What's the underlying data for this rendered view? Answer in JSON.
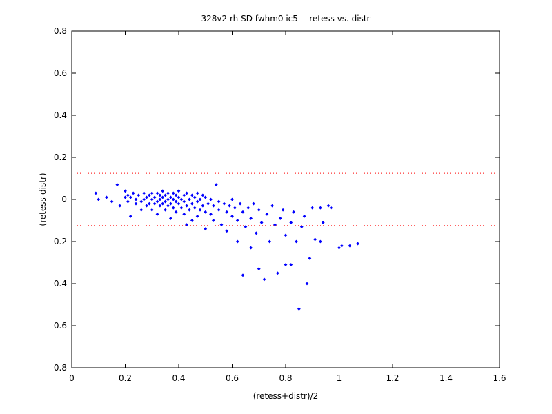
{
  "chart_data": {
    "type": "scatter",
    "title": "328v2 rh SD fwhm0 ic5 -- retess vs. distr",
    "xlabel": "(retess+distr)/2",
    "ylabel": "(retess-distr)",
    "xlim": [
      0,
      1.6
    ],
    "ylim": [
      -0.8,
      0.8
    ],
    "xticks": [
      "0",
      "0.2",
      "0.4",
      "0.6",
      "0.8",
      "1",
      "1.2",
      "1.4",
      "1.6"
    ],
    "yticks": [
      "-0.8",
      "-0.6",
      "-0.4",
      "-0.2",
      "0",
      "0.2",
      "0.4",
      "0.6",
      "0.8"
    ],
    "grid": false,
    "marker_color": "#0000ff",
    "limit_line_color": "#ff0000",
    "limit_lines": [
      0.124,
      -0.124
    ],
    "points": [
      [
        0.09,
        0.03
      ],
      [
        0.1,
        0.0
      ],
      [
        0.13,
        0.01
      ],
      [
        0.15,
        -0.01
      ],
      [
        0.17,
        0.07
      ],
      [
        0.18,
        -0.03
      ],
      [
        0.2,
        0.01
      ],
      [
        0.2,
        0.04
      ],
      [
        0.21,
        -0.01
      ],
      [
        0.21,
        0.02
      ],
      [
        0.22,
        0.01
      ],
      [
        0.22,
        -0.08
      ],
      [
        0.23,
        0.03
      ],
      [
        0.24,
        0.0
      ],
      [
        0.24,
        -0.02
      ],
      [
        0.25,
        0.02
      ],
      [
        0.26,
        -0.01
      ],
      [
        0.26,
        -0.05
      ],
      [
        0.27,
        0.03
      ],
      [
        0.27,
        0.0
      ],
      [
        0.28,
        0.01
      ],
      [
        0.28,
        -0.03
      ],
      [
        0.29,
        0.02
      ],
      [
        0.29,
        -0.02
      ],
      [
        0.3,
        0.03
      ],
      [
        0.3,
        0.0
      ],
      [
        0.3,
        -0.05
      ],
      [
        0.31,
        0.01
      ],
      [
        0.31,
        -0.02
      ],
      [
        0.32,
        0.03
      ],
      [
        0.32,
        -0.01
      ],
      [
        0.32,
        -0.07
      ],
      [
        0.33,
        0.02
      ],
      [
        0.33,
        0.0
      ],
      [
        0.33,
        -0.03
      ],
      [
        0.34,
        0.04
      ],
      [
        0.34,
        0.01
      ],
      [
        0.34,
        -0.02
      ],
      [
        0.35,
        0.02
      ],
      [
        0.35,
        -0.01
      ],
      [
        0.35,
        -0.05
      ],
      [
        0.36,
        0.03
      ],
      [
        0.36,
        0.0
      ],
      [
        0.36,
        -0.03
      ],
      [
        0.37,
        0.01
      ],
      [
        0.37,
        -0.02
      ],
      [
        0.37,
        -0.09
      ],
      [
        0.38,
        0.03
      ],
      [
        0.38,
        0.0
      ],
      [
        0.38,
        -0.04
      ],
      [
        0.39,
        0.02
      ],
      [
        0.39,
        -0.01
      ],
      [
        0.39,
        -0.06
      ],
      [
        0.4,
        0.04
      ],
      [
        0.4,
        0.01
      ],
      [
        0.4,
        -0.02
      ],
      [
        0.41,
        0.0
      ],
      [
        0.41,
        -0.04
      ],
      [
        0.42,
        0.02
      ],
      [
        0.42,
        -0.01
      ],
      [
        0.42,
        -0.07
      ],
      [
        0.43,
        0.03
      ],
      [
        0.43,
        -0.03
      ],
      [
        0.43,
        -0.12
      ],
      [
        0.44,
        0.0
      ],
      [
        0.44,
        -0.05
      ],
      [
        0.45,
        0.02
      ],
      [
        0.45,
        -0.02
      ],
      [
        0.45,
        -0.1
      ],
      [
        0.46,
        0.01
      ],
      [
        0.46,
        -0.04
      ],
      [
        0.47,
        0.03
      ],
      [
        0.47,
        -0.01
      ],
      [
        0.47,
        -0.08
      ],
      [
        0.48,
        0.0
      ],
      [
        0.48,
        -0.05
      ],
      [
        0.49,
        0.02
      ],
      [
        0.49,
        -0.03
      ],
      [
        0.5,
        0.01
      ],
      [
        0.5,
        -0.06
      ],
      [
        0.5,
        -0.14
      ],
      [
        0.51,
        -0.02
      ],
      [
        0.52,
        0.0
      ],
      [
        0.52,
        -0.07
      ],
      [
        0.53,
        -0.03
      ],
      [
        0.53,
        -0.1
      ],
      [
        0.54,
        0.07
      ],
      [
        0.55,
        -0.01
      ],
      [
        0.55,
        -0.05
      ],
      [
        0.56,
        -0.12
      ],
      [
        0.57,
        -0.02
      ],
      [
        0.58,
        -0.06
      ],
      [
        0.58,
        -0.15
      ],
      [
        0.59,
        -0.03
      ],
      [
        0.6,
        0.0
      ],
      [
        0.6,
        -0.08
      ],
      [
        0.61,
        -0.04
      ],
      [
        0.62,
        -0.1
      ],
      [
        0.62,
        -0.2
      ],
      [
        0.63,
        -0.02
      ],
      [
        0.64,
        -0.06
      ],
      [
        0.64,
        -0.36
      ],
      [
        0.65,
        -0.13
      ],
      [
        0.66,
        -0.04
      ],
      [
        0.67,
        -0.09
      ],
      [
        0.67,
        -0.23
      ],
      [
        0.68,
        -0.02
      ],
      [
        0.69,
        -0.16
      ],
      [
        0.7,
        -0.05
      ],
      [
        0.7,
        -0.33
      ],
      [
        0.71,
        -0.11
      ],
      [
        0.72,
        -0.38
      ],
      [
        0.73,
        -0.07
      ],
      [
        0.74,
        -0.2
      ],
      [
        0.75,
        -0.03
      ],
      [
        0.76,
        -0.12
      ],
      [
        0.77,
        -0.35
      ],
      [
        0.78,
        -0.09
      ],
      [
        0.79,
        -0.05
      ],
      [
        0.8,
        -0.17
      ],
      [
        0.8,
        -0.31
      ],
      [
        0.82,
        -0.11
      ],
      [
        0.82,
        -0.31
      ],
      [
        0.83,
        -0.06
      ],
      [
        0.84,
        -0.2
      ],
      [
        0.85,
        -0.52
      ],
      [
        0.86,
        -0.13
      ],
      [
        0.87,
        -0.08
      ],
      [
        0.88,
        -0.4
      ],
      [
        0.89,
        -0.28
      ],
      [
        0.9,
        -0.04
      ],
      [
        0.91,
        -0.19
      ],
      [
        0.93,
        -0.04
      ],
      [
        0.93,
        -0.2
      ],
      [
        0.94,
        -0.11
      ],
      [
        0.96,
        -0.03
      ],
      [
        0.97,
        -0.04
      ],
      [
        1.0,
        -0.23
      ],
      [
        1.01,
        -0.22
      ],
      [
        1.04,
        -0.22
      ],
      [
        1.07,
        -0.21
      ]
    ]
  }
}
